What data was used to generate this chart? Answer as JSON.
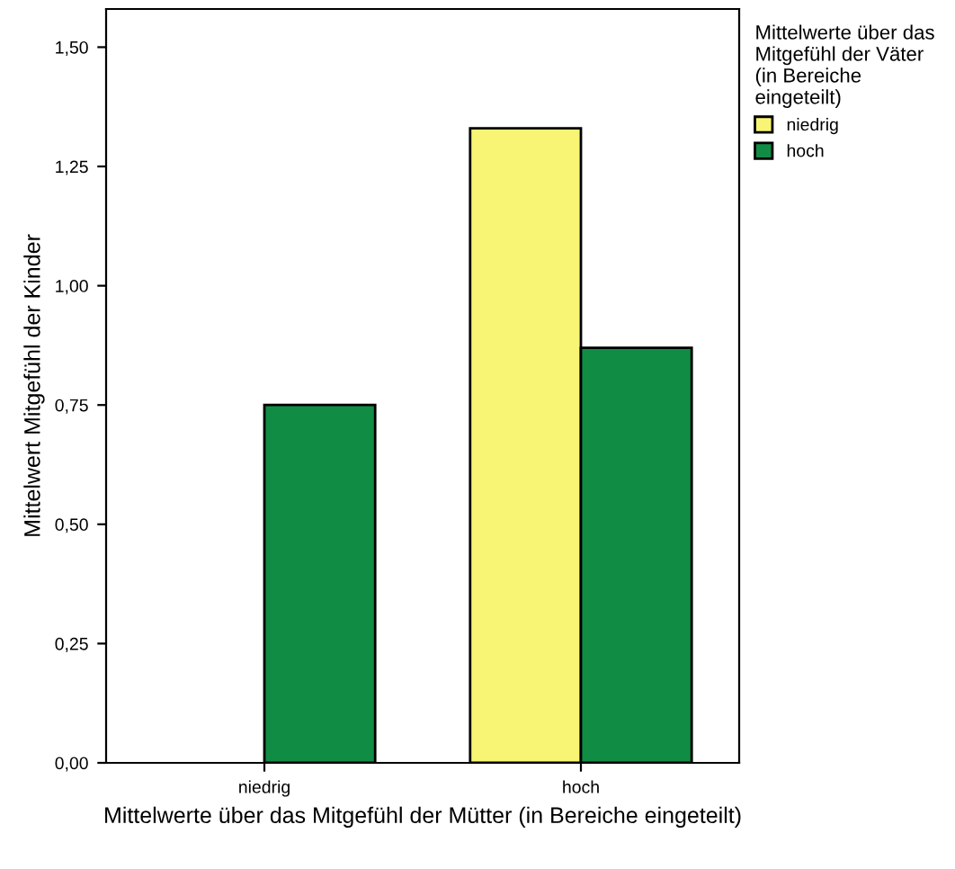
{
  "chart_data": {
    "type": "bar",
    "categories": [
      "niedrig",
      "hoch"
    ],
    "series": [
      {
        "name": "niedrig",
        "color": "#f8f574",
        "values": [
          null,
          1.33
        ]
      },
      {
        "name": "hoch",
        "color": "#118c45",
        "values": [
          0.75,
          0.87
        ]
      }
    ],
    "xlabel": "Mittelwerte über das Mitgefühl der Mütter (in Bereiche eingeteilt)",
    "ylabel": "Mittelwert Mitgefühl der Kinder",
    "legend_title": "Mittelwerte über das Mitgefühl der Väter (in Bereiche eingeteilt)",
    "ylim": [
      0,
      1.58
    ],
    "yticks": [
      {
        "value": 0,
        "label": "0,00"
      },
      {
        "value": 0.25,
        "label": "0,25"
      },
      {
        "value": 0.5,
        "label": "0,50"
      },
      {
        "value": 0.75,
        "label": "0,75"
      },
      {
        "value": 1,
        "label": "1,00"
      },
      {
        "value": 1.25,
        "label": "1,25"
      },
      {
        "value": 1.5,
        "label": "1,50"
      }
    ],
    "grid": false,
    "legend": "top right"
  }
}
